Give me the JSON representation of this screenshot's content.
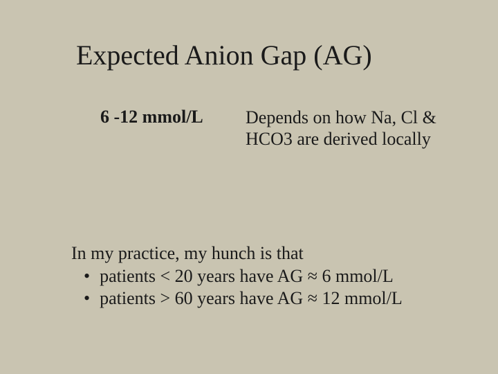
{
  "slide": {
    "background_color": "#c9c4b1",
    "text_color": "#1a1a1a",
    "title": "Expected Anion Gap (AG)",
    "title_fontsize": 40,
    "body_fontsize": 26,
    "font_family": "Times New Roman",
    "range": {
      "label": "6 -12 mmol/L",
      "font_weight": "bold"
    },
    "depends_line1": "Depends on how Na, Cl &",
    "depends_line2": "HCO3 are derived locally",
    "practice_intro": "In my practice, my hunch is that",
    "bullets": [
      "patients < 20 years have AG ≈ 6 mmol/L",
      "patients > 60 years have AG ≈ 12 mmol/L"
    ]
  }
}
